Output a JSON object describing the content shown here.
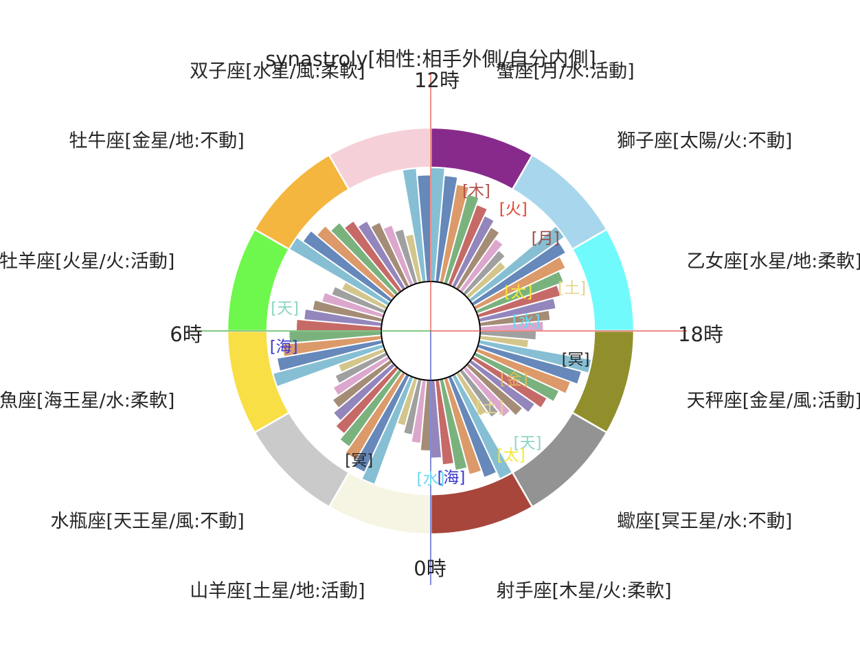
{
  "chart_data": {
    "type": "pie",
    "title": "synastroly[相性:相手外側/自分内側]",
    "hour_labels": {
      "top": "12時",
      "left": "6時",
      "right": "18時",
      "bottom": "0時"
    },
    "hour_line_colors": {
      "vertical_top": "#e0463a",
      "vertical_bottom": "#3040c0",
      "horizontal_left": "#3aa63a",
      "horizontal_right": "#e0463a"
    },
    "signs": [
      {
        "label": "蟹座[月/水:活動]",
        "color": "#882a8c"
      },
      {
        "label": "獅子座[太陽/火:不動]",
        "color": "#a8d6ec"
      },
      {
        "label": "乙女座[水星/地:柔軟]",
        "color": "#70fafc"
      },
      {
        "label": "天秤座[金星/風:活動]",
        "color": "#908f2c"
      },
      {
        "label": "蠍座[冥王星/水:不動]",
        "color": "#939393"
      },
      {
        "label": "射手座[木星/火:柔軟]",
        "color": "#a8463c"
      },
      {
        "label": "山羊座[土星/地:活動]",
        "color": "#f6f5e4"
      },
      {
        "label": "水瓶座[天王星/風:不動]",
        "color": "#cacaca"
      },
      {
        "label": "魚座[海王星/水:柔軟]",
        "color": "#f9df46"
      },
      {
        "label": "牡羊座[火星/火:活動]",
        "color": "#6ef74c"
      },
      {
        "label": "牡牛座[金星/地:不動]",
        "color": "#f4b63e"
      },
      {
        "label": "双子座[水星/風:柔軟]",
        "color": "#f6d0d8"
      }
    ],
    "wedge_palette": [
      "#86bfd4",
      "#6688ba",
      "#dc9a6a",
      "#7ab27e",
      "#c66a67",
      "#9386bc",
      "#a48c76",
      "#dca7cd",
      "#a0a0a0",
      "#d2c68c"
    ],
    "outer_planets": [
      {
        "label": "[木]",
        "color": "#b0524c",
        "angle": 72
      },
      {
        "label": "[火]",
        "color": "#e0462f",
        "angle": 56
      },
      {
        "label": "[月]",
        "color": "#9e4540",
        "angle": 39
      },
      {
        "label": "[土]",
        "color": "#e4d488",
        "angle": 17
      },
      {
        "label": "[冥]",
        "color": "#262626",
        "angle": -11
      },
      {
        "label": "[天]",
        "color": "#8dd6c4",
        "angle": -49
      },
      {
        "label": "[太]",
        "color": "#f4e83a",
        "angle": -57
      },
      {
        "label": "[海]",
        "color": "#3a3ad0",
        "angle": -82
      },
      {
        "label": "[水]",
        "color": "#6ad6f0",
        "angle": -90
      },
      {
        "label": "[冥]",
        "color": "#262626",
        "angle": -119
      },
      {
        "label": "[海]",
        "color": "#3a3ad0",
        "angle": -174
      },
      {
        "label": "[天]",
        "color": "#8dd6c4",
        "angle": 171
      }
    ],
    "inner_planets": [
      {
        "label": "[太]",
        "color": "#f4e83a",
        "angle": 24
      },
      {
        "label": "[水]",
        "color": "#6ad6f0",
        "angle": 6
      },
      {
        "label": "[金]",
        "color": "#e4b860",
        "angle": -30
      },
      {
        "label": "[土]",
        "color": "#e4d488",
        "angle": -52
      }
    ]
  }
}
